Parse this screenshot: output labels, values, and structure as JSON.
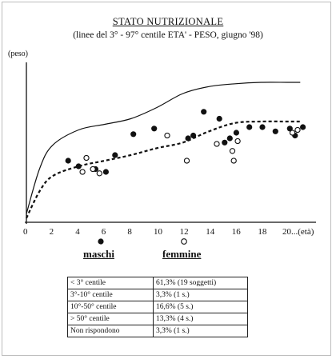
{
  "chart_data": {
    "type": "scatter",
    "title": "STATO NUTRIZIONALE",
    "subtitle": "(linee del 3° - 97° centile ETA' - PESO, giugno '98)",
    "ylabel": "(peso)",
    "xlabel": "",
    "x_ticks": [
      "0",
      "2",
      "4",
      "6",
      "8",
      "10",
      "12",
      "14",
      "16",
      "18",
      "20...(età)"
    ],
    "x_tick_values": [
      0,
      2,
      4,
      6,
      8,
      10,
      12,
      14,
      16,
      18,
      20
    ],
    "xlim": [
      0,
      22
    ],
    "ylim": [
      0,
      100
    ],
    "grid": false,
    "legend_placement": "bottom",
    "reference_curves": [
      {
        "label": "97° centile",
        "style": "solid",
        "x": [
          0,
          1,
          2,
          4,
          6,
          8,
          10,
          12,
          14,
          16,
          18,
          20,
          21
        ],
        "y": [
          6,
          38,
          55,
          66,
          70,
          74,
          82,
          92,
          97,
          99,
          100,
          100,
          100
        ]
      },
      {
        "label": "3° centile",
        "style": "dashed",
        "x": [
          0,
          1,
          2,
          4,
          6,
          8,
          10,
          12,
          14,
          16,
          18,
          20,
          21
        ],
        "y": [
          3,
          22,
          33,
          40,
          44,
          48,
          53,
          57,
          65,
          71,
          72,
          72,
          72
        ]
      }
    ],
    "series": [
      {
        "name": "maschi",
        "marker": "filled",
        "x": [
          3.2,
          4.0,
          5.3,
          6.1,
          6.8,
          8.2,
          9.8,
          12.4,
          12.8,
          13.6,
          14.8,
          15.2,
          15.6,
          16.1,
          17.1,
          18.1,
          19.1,
          20.2,
          20.6,
          21.2
        ],
        "y": [
          44,
          40,
          38,
          36,
          48,
          63,
          67,
          60,
          62,
          79,
          74,
          57,
          60,
          64,
          68,
          68,
          65,
          67,
          62,
          68
        ]
      },
      {
        "name": "femmine",
        "marker": "open",
        "x": [
          4.3,
          4.6,
          5.1,
          5.6,
          10.8,
          12.3,
          14.6,
          15.8,
          15.9,
          16.2,
          20.4,
          20.8
        ],
        "y": [
          36,
          46,
          38,
          35,
          62,
          44,
          56,
          51,
          44,
          58,
          64,
          66
        ]
      }
    ]
  },
  "legend": {
    "maschi_label": "maschi",
    "femmine_label": "femmine"
  },
  "stats_table": {
    "rows": [
      {
        "category": "< 3° centile",
        "value": "61,3% (19 soggetti)"
      },
      {
        "category": "3°-10° centile",
        "value": "3,3% (1 s.)"
      },
      {
        "category": "10°-50° centile",
        "value": "16,6% (5 s.)"
      },
      {
        "category": "> 50° centile",
        "value": "13,3% (4 s.)"
      },
      {
        "category": "Non rispondono",
        "value": "3,3% (1 s.)"
      }
    ]
  },
  "colors": {
    "ink": "#111111",
    "frame": "#bdbdbd"
  }
}
